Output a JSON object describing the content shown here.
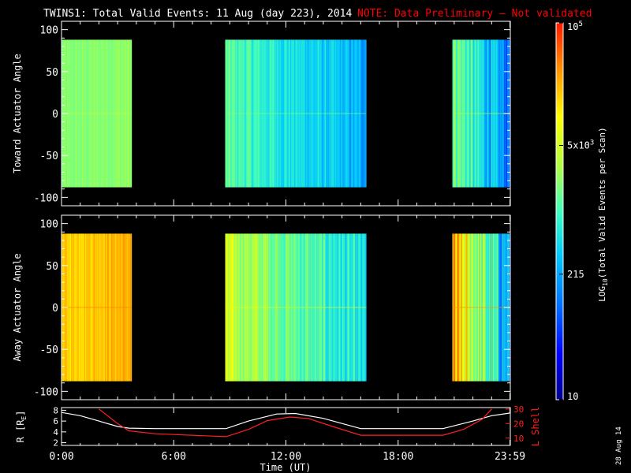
{
  "header": {
    "title": "TWINS1: Total Valid Events: 11 Aug (day 223), 2014",
    "note": "NOTE: Data Preliminary – Not validated"
  },
  "stamp": "28 Aug 14",
  "chart_data": [
    {
      "type": "heatmap",
      "ylabel": "Toward Actuator Angle",
      "xlabel": "",
      "ylim": [
        -110,
        110
      ],
      "y_ticks": [
        "100",
        "50",
        "0",
        "-50",
        "-100"
      ],
      "xlim": [
        0,
        24
      ],
      "data_y_range": [
        -88,
        88
      ],
      "segments": [
        {
          "t_start": 0.0,
          "t_end": 3.75,
          "level_start": 0.57,
          "level_end": 0.59
        },
        {
          "t_start": 8.75,
          "t_end": 16.3,
          "level_start": 0.52,
          "level_end": 0.33
        },
        {
          "t_start": 20.9,
          "t_end": 24.0,
          "level_start": 0.58,
          "level_end": 0.25
        }
      ]
    },
    {
      "type": "heatmap",
      "ylabel": "Away Actuator Angle",
      "xlabel": "",
      "ylim": [
        -110,
        110
      ],
      "y_ticks": [
        "100",
        "50",
        "0",
        "-50",
        "-100"
      ],
      "xlim": [
        0,
        24
      ],
      "data_y_range": [
        -88,
        88
      ],
      "segments": [
        {
          "t_start": 0.0,
          "t_end": 3.75,
          "level_start": 0.8,
          "level_end": 0.84
        },
        {
          "t_start": 8.75,
          "t_end": 16.3,
          "level_start": 0.66,
          "level_end": 0.4
        },
        {
          "t_start": 20.9,
          "t_end": 24.0,
          "level_start": 0.82,
          "level_end": 0.3
        }
      ]
    },
    {
      "type": "line",
      "xlabel": "Time (UT)",
      "x_ticks": [
        "0:00",
        "6:00",
        "12:00",
        "18:00",
        "23:59"
      ],
      "x_tick_values": [
        0,
        6,
        12,
        18,
        23.98
      ],
      "ylabel": "R [R",
      "ylabel_sub": "E",
      "ylabel_close": "]",
      "ylim": [
        1.5,
        8.5
      ],
      "y_ticks": [
        "8",
        "6",
        "4",
        "2"
      ],
      "y2label": "L Shell",
      "y2lim": [
        5,
        31
      ],
      "y2_ticks": [
        "30",
        "20",
        "10"
      ],
      "series": [
        {
          "axis": "left",
          "color": "#ffffff",
          "x": [
            0,
            1,
            2,
            3,
            3.6,
            5,
            8.8,
            10,
            11.5,
            12.5,
            14,
            16,
            20.4,
            22,
            23,
            24
          ],
          "y": [
            7.6,
            7.0,
            6.0,
            5.0,
            4.7,
            4.6,
            4.6,
            6.0,
            7.3,
            7.4,
            6.5,
            4.6,
            4.6,
            6.0,
            7.0,
            7.5
          ]
        },
        {
          "axis": "right",
          "color": "#ff2020",
          "x": [
            2,
            3,
            3.6,
            5,
            8.8,
            10,
            11,
            12.2,
            13.2,
            14.5,
            16,
            20.4,
            21.5,
            22.5,
            23
          ],
          "y": [
            30,
            20,
            15,
            13,
            11,
            16,
            22,
            24.5,
            23.5,
            18,
            12,
            12,
            16,
            23,
            30
          ]
        }
      ]
    }
  ],
  "colorbar": {
    "label": "LOG10(Total Valid Events per Scan)",
    "label_pre": "LOG",
    "label_sub": "10",
    "label_post": "(Total Valid Events per Scan)",
    "scale": "log",
    "range": [
      10,
      100000
    ],
    "ticks": [
      {
        "base": "10",
        "exp": "5",
        "value": 100000
      },
      {
        "base": "5x10",
        "exp": "3",
        "value": 5000
      },
      {
        "base": "215",
        "exp": "",
        "value": 215
      },
      {
        "base": "10",
        "exp": "",
        "value": 10
      }
    ]
  },
  "colors": {
    "scale": [
      "#00008c",
      "#0000ff",
      "#0070ff",
      "#00c8ff",
      "#40ffbf",
      "#b0ff40",
      "#ffff00",
      "#ff9000",
      "#ff1a00"
    ],
    "note": "#ff0000",
    "lshell": "#ff2020"
  }
}
